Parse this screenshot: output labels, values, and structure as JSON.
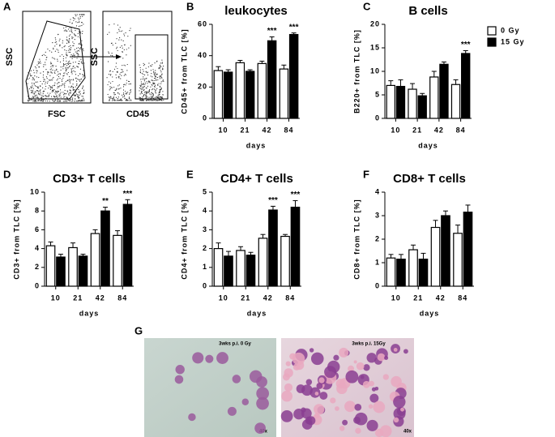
{
  "panel_a": {
    "label": "A",
    "plots": [
      {
        "y_label": "SSC",
        "x_label": "FSC"
      },
      {
        "y_label": "SSC",
        "x_label": "CD45"
      }
    ]
  },
  "chart_data": [
    {
      "label": "B",
      "type": "bar",
      "title": "leukocytes",
      "x_label": "days",
      "y_label": "CD45+ from TLC [%]",
      "categories": [
        "10",
        "21",
        "42",
        "84"
      ],
      "series": [
        {
          "color": "#ffffff",
          "values": [
            30.5,
            35.5,
            35,
            31.5
          ],
          "errors": [
            2.5,
            1.5,
            1.5,
            2.5
          ]
        },
        {
          "color": "#000000",
          "values": [
            29.5,
            30,
            49.5,
            53.5
          ],
          "errors": [
            1.5,
            1,
            2.5,
            1
          ]
        }
      ],
      "ylim": [
        0,
        60
      ],
      "yticks": [
        0,
        20,
        40,
        60
      ],
      "annotations": [
        {
          "text": "***",
          "x": "42"
        },
        {
          "text": "***",
          "x": "84"
        }
      ]
    },
    {
      "label": "C",
      "type": "bar",
      "title": "B cells",
      "x_label": "days",
      "y_label": "B220+ from TLC [%]",
      "categories": [
        "10",
        "21",
        "42",
        "84"
      ],
      "series": [
        {
          "name": "0 Gy",
          "color": "#ffffff",
          "values": [
            7,
            6.2,
            8.8,
            7.2
          ],
          "errors": [
            1,
            1.2,
            1.2,
            1
          ]
        },
        {
          "name": "15 Gy",
          "color": "#000000",
          "values": [
            6.8,
            4.8,
            11.5,
            13.8
          ],
          "errors": [
            1.4,
            0.5,
            0.5,
            0.6
          ]
        }
      ],
      "ylim": [
        0,
        20
      ],
      "yticks": [
        0,
        5,
        10,
        15,
        20
      ],
      "legend": "right",
      "annotations": [
        {
          "text": "***",
          "x": "84"
        }
      ]
    },
    {
      "label": "D",
      "type": "bar",
      "title": "CD3+ T cells",
      "x_label": "days",
      "y_label": "CD3+ from TLC [%]",
      "categories": [
        "10",
        "21",
        "42",
        "84"
      ],
      "series": [
        {
          "color": "#ffffff",
          "values": [
            4.3,
            4.1,
            5.6,
            5.4
          ],
          "errors": [
            0.4,
            0.5,
            0.4,
            0.5
          ]
        },
        {
          "color": "#000000",
          "values": [
            3.1,
            3.2,
            8.0,
            8.7
          ],
          "errors": [
            0.3,
            0.2,
            0.4,
            0.5
          ]
        }
      ],
      "ylim": [
        0,
        10
      ],
      "yticks": [
        0,
        2,
        4,
        6,
        8,
        10
      ],
      "annotations": [
        {
          "text": "**",
          "x": "42"
        },
        {
          "text": "***",
          "x": "84"
        }
      ]
    },
    {
      "label": "E",
      "type": "bar",
      "title": "CD4+ T cells",
      "x_label": "days",
      "y_label": "CD4+ from TLC [%]",
      "categories": [
        "10",
        "21",
        "42",
        "84"
      ],
      "series": [
        {
          "color": "#ffffff",
          "values": [
            2.0,
            1.9,
            2.55,
            2.65
          ],
          "errors": [
            0.3,
            0.2,
            0.2,
            0.1
          ]
        },
        {
          "color": "#000000",
          "values": [
            1.6,
            1.65,
            4.05,
            4.2
          ],
          "errors": [
            0.25,
            0.15,
            0.2,
            0.35
          ]
        }
      ],
      "ylim": [
        0,
        5
      ],
      "yticks": [
        0,
        1,
        2,
        3,
        4,
        5
      ],
      "annotations": [
        {
          "text": "***",
          "x": "42"
        },
        {
          "text": "***",
          "x": "84"
        }
      ]
    },
    {
      "label": "F",
      "type": "bar",
      "title": "CD8+ T cells",
      "x_label": "days",
      "y_label": "CD8+ from TLC [%]",
      "categories": [
        "10",
        "21",
        "42",
        "84"
      ],
      "series": [
        {
          "color": "#ffffff",
          "values": [
            1.2,
            1.55,
            2.5,
            2.25
          ],
          "errors": [
            0.15,
            0.2,
            0.3,
            0.35
          ]
        },
        {
          "color": "#000000",
          "values": [
            1.15,
            1.15,
            3.0,
            3.15
          ],
          "errors": [
            0.2,
            0.25,
            0.2,
            0.3
          ]
        }
      ],
      "ylim": [
        0,
        4
      ],
      "yticks": [
        0,
        1,
        2,
        3,
        4
      ]
    }
  ],
  "panel_g": {
    "label": "G",
    "images": [
      {
        "caption": "3wks p.i. 0 Gy",
        "magnification": "40x"
      },
      {
        "caption": "3wks p.i. 15Gy",
        "magnification": "40x"
      }
    ]
  }
}
